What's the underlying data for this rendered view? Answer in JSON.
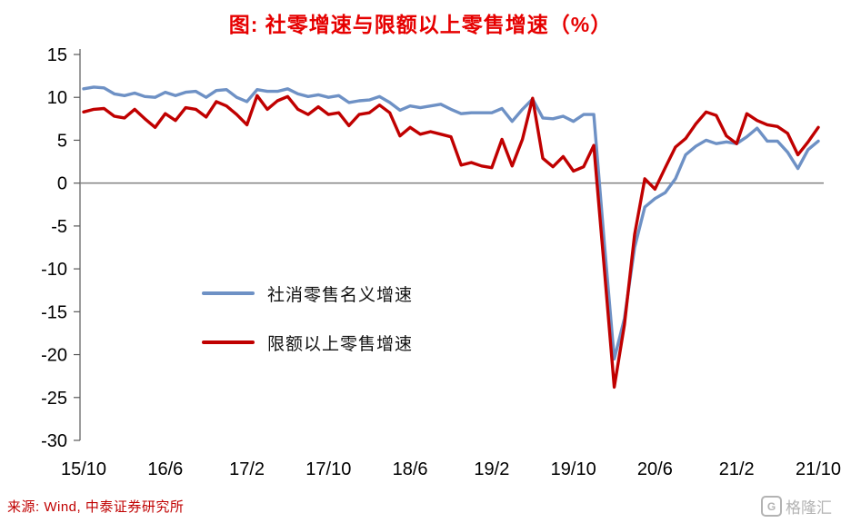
{
  "title": "图: 社零增速与限额以上零售增速（%）",
  "source_note": "来源: Wind, 中泰证券研究所",
  "watermark": {
    "logo_letter": "G",
    "text": "格隆汇"
  },
  "styles": {
    "title_color": "#E60000",
    "source_color": "#C00000",
    "watermark_color": "#B3B3B3"
  },
  "chart_data": {
    "type": "line",
    "title": "图: 社零增速与限额以上零售增速（%）",
    "x_start": "2015/10",
    "x_end": "2021/10",
    "x_frequency": "monthly",
    "x_tick_labels": [
      "15/10",
      "16/6",
      "17/2",
      "17/10",
      "18/6",
      "19/2",
      "19/10",
      "20/6",
      "21/2",
      "21/10"
    ],
    "x_tick_indices": [
      0,
      8,
      16,
      24,
      32,
      40,
      48,
      56,
      64,
      72
    ],
    "y_ticks": [
      15,
      10,
      5,
      0,
      -5,
      -10,
      -15,
      -20,
      -25,
      -30
    ],
    "ylim": [
      -30,
      15
    ],
    "grid": false,
    "zero_line": true,
    "zero_line_color": "#808080",
    "axis_color": "#595959",
    "legend_position": "inside-left-middle",
    "series": [
      {
        "name": "社消零售名义增速",
        "color": "#6E91C5",
        "values": [
          11.0,
          11.2,
          11.1,
          10.4,
          10.2,
          10.5,
          10.1,
          10.0,
          10.6,
          10.2,
          10.6,
          10.7,
          10.0,
          10.8,
          10.9,
          10.0,
          9.5,
          10.9,
          10.7,
          10.7,
          11.0,
          10.4,
          10.1,
          10.3,
          10.0,
          10.2,
          9.4,
          9.6,
          9.7,
          10.1,
          9.4,
          8.5,
          9.0,
          8.8,
          9.0,
          9.2,
          8.6,
          8.1,
          8.2,
          8.2,
          8.2,
          8.7,
          7.2,
          8.6,
          9.8,
          7.6,
          7.5,
          7.8,
          7.2,
          8.0,
          8.0,
          -6.5,
          -20.5,
          -15.8,
          -7.5,
          -2.8,
          -1.8,
          -1.1,
          0.5,
          3.3,
          4.3,
          5.0,
          4.6,
          4.8,
          4.6,
          5.4,
          6.4,
          4.9,
          4.9,
          3.6,
          1.7,
          3.9,
          4.9
        ]
      },
      {
        "name": "限额以上零售增速",
        "color": "#C00000",
        "values": [
          8.3,
          8.6,
          8.7,
          7.8,
          7.6,
          8.6,
          7.5,
          6.5,
          8.1,
          7.3,
          8.8,
          8.6,
          7.7,
          9.5,
          9.0,
          8.0,
          6.8,
          10.2,
          8.6,
          9.6,
          10.1,
          8.6,
          8.0,
          8.9,
          8.0,
          8.2,
          6.7,
          8.0,
          8.2,
          9.1,
          8.2,
          5.5,
          6.5,
          5.7,
          6.0,
          5.7,
          5.4,
          2.1,
          2.4,
          2.0,
          1.8,
          5.1,
          2.0,
          5.1,
          9.9,
          2.9,
          1.9,
          3.1,
          1.4,
          1.9,
          4.4,
          -9.5,
          -23.8,
          -16.5,
          -6.0,
          0.5,
          -0.7,
          1.8,
          4.2,
          5.2,
          6.9,
          8.3,
          7.9,
          5.5,
          4.6,
          8.1,
          7.3,
          6.8,
          6.6,
          5.8,
          3.3,
          4.8,
          6.5
        ]
      }
    ]
  }
}
